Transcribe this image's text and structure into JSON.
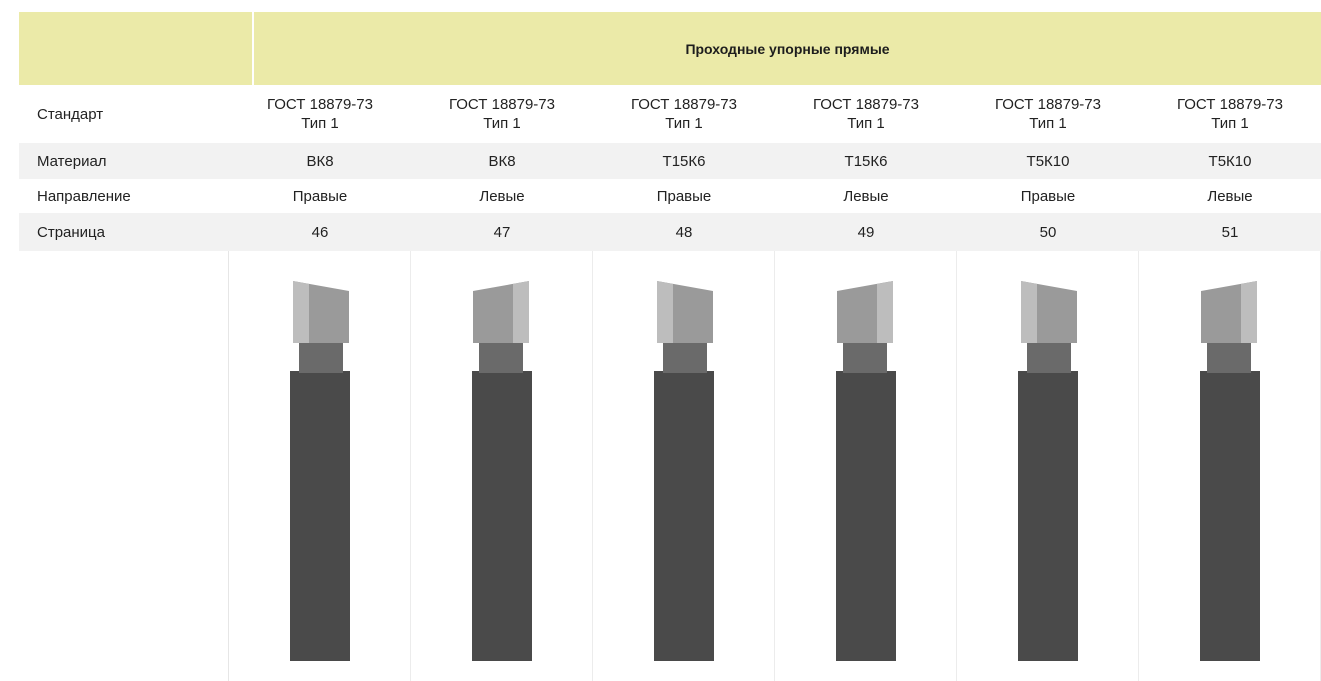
{
  "header": {
    "title": "Проходные упорные прямые"
  },
  "rows": {
    "standard": {
      "label": "Стандарт"
    },
    "material": {
      "label": "Материал"
    },
    "direction": {
      "label": "Направление"
    },
    "page": {
      "label": "Страница"
    }
  },
  "columns": [
    {
      "standard_line1": "ГОСТ 18879-73",
      "standard_line2": "Тип 1",
      "material": "ВК8",
      "direction": "Правые",
      "page": "46",
      "orientation": "right"
    },
    {
      "standard_line1": "ГОСТ 18879-73",
      "standard_line2": "Тип 1",
      "material": "ВК8",
      "direction": "Левые",
      "page": "47",
      "orientation": "left"
    },
    {
      "standard_line1": "ГОСТ 18879-73",
      "standard_line2": "Тип 1",
      "material": "Т15К6",
      "direction": "Правые",
      "page": "48",
      "orientation": "right"
    },
    {
      "standard_line1": "ГОСТ 18879-73",
      "standard_line2": "Тип 1",
      "material": "Т15К6",
      "direction": "Левые",
      "page": "49",
      "orientation": "left"
    },
    {
      "standard_line1": "ГОСТ 18879-73",
      "standard_line2": "Тип 1",
      "material": "Т5К10",
      "direction": "Правые",
      "page": "50",
      "orientation": "right"
    },
    {
      "standard_line1": "ГОСТ 18879-73",
      "standard_line2": "Тип 1",
      "material": "Т5К10",
      "direction": "Левые",
      "page": "51",
      "orientation": "left"
    }
  ],
  "colors": {
    "header_bg": "#ebeaa8",
    "row_shade": "#f2f2f2",
    "tool_body": "#4a4a4a",
    "tool_tip": "#9a9a9a"
  }
}
